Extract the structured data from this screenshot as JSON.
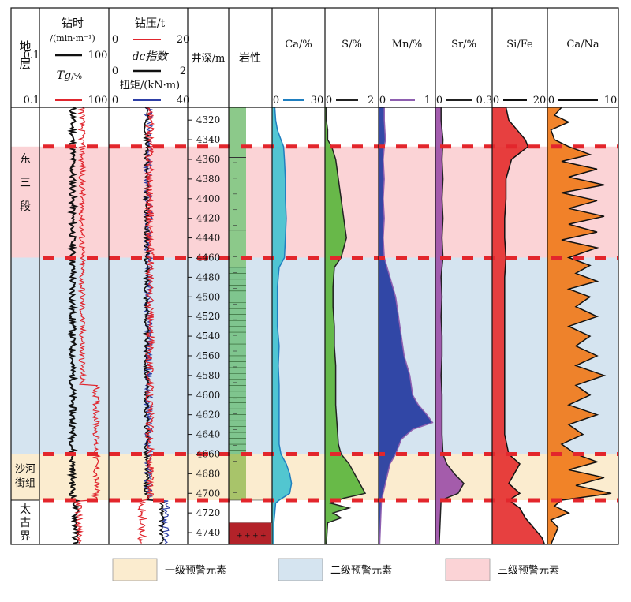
{
  "chart_data": {
    "type": "well-log",
    "depth": {
      "header": "井深/m",
      "ticks": [
        4320,
        4340,
        4360,
        4380,
        4400,
        4420,
        4440,
        4460,
        4480,
        4500,
        4520,
        4540,
        4560,
        4580,
        4600,
        4620,
        4640,
        4660,
        4680,
        4700,
        4720,
        4740
      ],
      "ylim": [
        4307,
        4752
      ]
    },
    "lithology_header": "岩性",
    "stratum_header": "地层",
    "strata": [
      {
        "name": "东三段",
        "top": 4307,
        "bottom": 4460
      },
      {
        "name": "沙河街组",
        "top": 4660,
        "bottom": 4707
      },
      {
        "name": "太古界",
        "top": 4707,
        "bottom": 4752
      }
    ],
    "zones": [
      {
        "level": 3,
        "top": 4347,
        "bottom": 4460
      },
      {
        "level": 2,
        "top": 4460,
        "bottom": 4660
      },
      {
        "level": 1,
        "top": 4660,
        "bottom": 4707
      }
    ],
    "boundaries": [
      4347,
      4460,
      4660,
      4707
    ],
    "legend": [
      {
        "level": 1,
        "label": "一级预警元素",
        "color": "#fbeccf"
      },
      {
        "level": 2,
        "label": "二级预警元素",
        "color": "#d5e4f0"
      },
      {
        "level": 3,
        "label": "三级预警元素",
        "color": "#fbd3d6"
      }
    ],
    "tracks": [
      {
        "id": "t1",
        "curves": [
          {
            "name": "钻时",
            "unit": "/(min·m⁻¹)",
            "min": "0.1",
            "max": "100",
            "color": "#111111",
            "scale": "log"
          },
          {
            "name": "Tg",
            "unit": "/%",
            "min": "0.1",
            "max": "100",
            "color": "#e0262e",
            "scale": "log"
          }
        ]
      },
      {
        "id": "t2",
        "curves": [
          {
            "name": "钻压/t",
            "min": "0",
            "max": "20",
            "color": "#e0262e"
          },
          {
            "name": "dc指数",
            "min": "0",
            "max": "2",
            "color": "#111111"
          },
          {
            "name": "扭矩/(kN·m)",
            "min": "0",
            "max": "40",
            "color": "#2e3fa6"
          }
        ]
      }
    ],
    "element_tracks": [
      {
        "name": "Ca/%",
        "min": "0",
        "max": "30",
        "line": "#1f7fc0",
        "fill": "#43c2d0",
        "points": [
          [
            4307,
            1.5
          ],
          [
            4320,
            2
          ],
          [
            4330,
            3
          ],
          [
            4340,
            5
          ],
          [
            4347,
            6.5
          ],
          [
            4360,
            7
          ],
          [
            4380,
            7.5
          ],
          [
            4400,
            7.5
          ],
          [
            4420,
            8
          ],
          [
            4440,
            7.5
          ],
          [
            4460,
            7
          ],
          [
            4470,
            4
          ],
          [
            4490,
            3
          ],
          [
            4510,
            3
          ],
          [
            4530,
            3
          ],
          [
            4550,
            4
          ],
          [
            4570,
            3.5
          ],
          [
            4590,
            4
          ],
          [
            4610,
            4
          ],
          [
            4630,
            4
          ],
          [
            4650,
            4
          ],
          [
            4660,
            5
          ],
          [
            4670,
            8
          ],
          [
            4680,
            10
          ],
          [
            4690,
            11
          ],
          [
            4700,
            10
          ],
          [
            4707,
            4
          ],
          [
            4710,
            2
          ],
          [
            4720,
            1.5
          ],
          [
            4730,
            1
          ],
          [
            4752,
            1
          ]
        ]
      },
      {
        "name": "S/%",
        "min": "0",
        "max": "2",
        "line": "#222222",
        "fill": "#5bb53d",
        "points": [
          [
            4307,
            0.05
          ],
          [
            4320,
            0.05
          ],
          [
            4330,
            0.1
          ],
          [
            4340,
            0.1
          ],
          [
            4347,
            0.25
          ],
          [
            4360,
            0.4
          ],
          [
            4380,
            0.5
          ],
          [
            4400,
            0.6
          ],
          [
            4420,
            0.7
          ],
          [
            4440,
            0.8
          ],
          [
            4460,
            0.6
          ],
          [
            4470,
            0.35
          ],
          [
            4490,
            0.3
          ],
          [
            4510,
            0.3
          ],
          [
            4530,
            0.35
          ],
          [
            4550,
            0.35
          ],
          [
            4570,
            0.4
          ],
          [
            4590,
            0.4
          ],
          [
            4610,
            0.4
          ],
          [
            4630,
            0.45
          ],
          [
            4650,
            0.5
          ],
          [
            4660,
            0.6
          ],
          [
            4670,
            0.9
          ],
          [
            4680,
            1.1
          ],
          [
            4690,
            1.3
          ],
          [
            4700,
            1.5
          ],
          [
            4705,
            0.7
          ],
          [
            4710,
            0.2
          ],
          [
            4715,
            0.9
          ],
          [
            4720,
            0.3
          ],
          [
            4725,
            0.6
          ],
          [
            4730,
            0.1
          ],
          [
            4752,
            0.05
          ]
        ]
      },
      {
        "name": "Mn/%",
        "min": "0",
        "max": "1",
        "line": "#8e5fb0",
        "fill": "#23399f",
        "points": [
          [
            4307,
            0.1
          ],
          [
            4320,
            0.1
          ],
          [
            4340,
            0.12
          ],
          [
            4347,
            0.1
          ],
          [
            4360,
            0.08
          ],
          [
            4380,
            0.1
          ],
          [
            4400,
            0.08
          ],
          [
            4420,
            0.1
          ],
          [
            4440,
            0.08
          ],
          [
            4460,
            0.1
          ],
          [
            4480,
            0.2
          ],
          [
            4500,
            0.3
          ],
          [
            4520,
            0.35
          ],
          [
            4540,
            0.4
          ],
          [
            4560,
            0.45
          ],
          [
            4580,
            0.55
          ],
          [
            4600,
            0.6
          ],
          [
            4610,
            0.7
          ],
          [
            4620,
            0.85
          ],
          [
            4628,
            0.95
          ],
          [
            4635,
            0.6
          ],
          [
            4645,
            0.4
          ],
          [
            4660,
            0.3
          ],
          [
            4670,
            0.2
          ],
          [
            4690,
            0.12
          ],
          [
            4707,
            0.05
          ],
          [
            4752,
            0.02
          ]
        ]
      },
      {
        "name": "Sr/%",
        "min": "0",
        "max": "0.3",
        "line": "#222222",
        "fill": "#9c4fa8",
        "points": [
          [
            4307,
            0.03
          ],
          [
            4320,
            0.03
          ],
          [
            4340,
            0.04
          ],
          [
            4360,
            0.035
          ],
          [
            4380,
            0.04
          ],
          [
            4400,
            0.035
          ],
          [
            4420,
            0.04
          ],
          [
            4440,
            0.035
          ],
          [
            4460,
            0.04
          ],
          [
            4480,
            0.03
          ],
          [
            4500,
            0.035
          ],
          [
            4520,
            0.03
          ],
          [
            4540,
            0.035
          ],
          [
            4560,
            0.035
          ],
          [
            4580,
            0.03
          ],
          [
            4600,
            0.035
          ],
          [
            4620,
            0.035
          ],
          [
            4640,
            0.035
          ],
          [
            4660,
            0.04
          ],
          [
            4670,
            0.06
          ],
          [
            4680,
            0.1
          ],
          [
            4690,
            0.15
          ],
          [
            4700,
            0.12
          ],
          [
            4707,
            0.03
          ],
          [
            4752,
            0.02
          ]
        ]
      },
      {
        "name": "Si/Fe",
        "min": "0",
        "max": "20",
        "line": "#111111",
        "fill": "#e53030",
        "points": [
          [
            4307,
            5
          ],
          [
            4320,
            6
          ],
          [
            4340,
            12
          ],
          [
            4347,
            13
          ],
          [
            4360,
            7
          ],
          [
            4380,
            5
          ],
          [
            4400,
            5
          ],
          [
            4420,
            4.5
          ],
          [
            4440,
            4.5
          ],
          [
            4460,
            5
          ],
          [
            4480,
            4.5
          ],
          [
            4500,
            4.5
          ],
          [
            4520,
            4.5
          ],
          [
            4540,
            4.5
          ],
          [
            4560,
            4.5
          ],
          [
            4580,
            4.5
          ],
          [
            4600,
            4.5
          ],
          [
            4620,
            4.5
          ],
          [
            4640,
            4.5
          ],
          [
            4660,
            6
          ],
          [
            4670,
            10
          ],
          [
            4680,
            8
          ],
          [
            4690,
            6
          ],
          [
            4700,
            10
          ],
          [
            4707,
            6
          ],
          [
            4715,
            10
          ],
          [
            4725,
            12
          ],
          [
            4735,
            15
          ],
          [
            4745,
            18
          ],
          [
            4752,
            19
          ]
        ]
      },
      {
        "name": "Ca/Na",
        "min": "0",
        "max": "10",
        "line": "#111111",
        "fill": "#f07a1a",
        "points": [
          [
            4307,
            2
          ],
          [
            4315,
            1
          ],
          [
            4322,
            3
          ],
          [
            4330,
            0.5
          ],
          [
            4340,
            1
          ],
          [
            4347,
            3
          ],
          [
            4355,
            6
          ],
          [
            4362,
            2
          ],
          [
            4370,
            7
          ],
          [
            4378,
            3
          ],
          [
            4386,
            8
          ],
          [
            4394,
            2
          ],
          [
            4402,
            7
          ],
          [
            4410,
            3
          ],
          [
            4418,
            8
          ],
          [
            4426,
            3
          ],
          [
            4434,
            7
          ],
          [
            4442,
            2
          ],
          [
            4450,
            7
          ],
          [
            4460,
            3
          ],
          [
            4468,
            6
          ],
          [
            4476,
            4
          ],
          [
            4484,
            7
          ],
          [
            4492,
            3
          ],
          [
            4500,
            6
          ],
          [
            4510,
            4
          ],
          [
            4520,
            7
          ],
          [
            4530,
            3
          ],
          [
            4540,
            6
          ],
          [
            4550,
            4
          ],
          [
            4560,
            7
          ],
          [
            4570,
            4
          ],
          [
            4580,
            8
          ],
          [
            4590,
            4
          ],
          [
            4600,
            6
          ],
          [
            4610,
            3
          ],
          [
            4620,
            7
          ],
          [
            4630,
            3
          ],
          [
            4640,
            5
          ],
          [
            4650,
            2
          ],
          [
            4660,
            4
          ],
          [
            4668,
            7
          ],
          [
            4676,
            3
          ],
          [
            4684,
            8
          ],
          [
            4692,
            4
          ],
          [
            4700,
            9
          ],
          [
            4707,
            2
          ],
          [
            4713,
            1
          ],
          [
            4720,
            3
          ],
          [
            4727,
            0.5
          ],
          [
            4735,
            1.5
          ],
          [
            4752,
            0.5
          ]
        ]
      }
    ]
  }
}
